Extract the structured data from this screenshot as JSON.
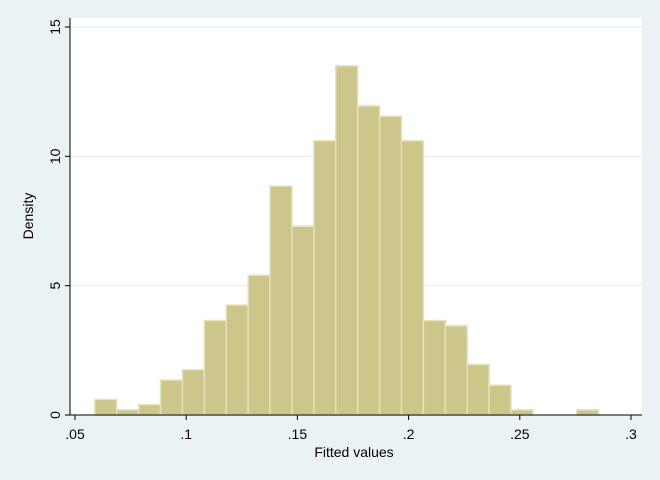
{
  "chart_data": {
    "type": "bar",
    "subtype": "histogram",
    "title": "",
    "xlabel": "Fitted values",
    "ylabel": "Density",
    "xlim": [
      0.05,
      0.3
    ],
    "ylim": [
      0,
      15
    ],
    "x_ticks": [
      {
        "value": 0.05,
        "label": ".05"
      },
      {
        "value": 0.1,
        "label": ".1"
      },
      {
        "value": 0.15,
        "label": ".15"
      },
      {
        "value": 0.2,
        "label": ".2"
      },
      {
        "value": 0.25,
        "label": ".25"
      },
      {
        "value": 0.3,
        "label": ".3"
      }
    ],
    "y_ticks": [
      {
        "value": 0,
        "label": "0"
      },
      {
        "value": 5,
        "label": "5"
      },
      {
        "value": 10,
        "label": "10"
      },
      {
        "value": 15,
        "label": "15"
      }
    ],
    "grid": true,
    "legend": "none",
    "bin_start": 0.0589,
    "bin_width": 0.00985,
    "values": [
      0.6,
      0.2,
      0.4,
      1.35,
      1.75,
      3.65,
      4.25,
      5.4,
      8.85,
      7.3,
      10.6,
      13.5,
      11.95,
      11.55,
      10.6,
      3.65,
      3.45,
      1.95,
      1.15,
      0.2,
      0,
      0,
      0.2
    ],
    "colors": {
      "bar_fill": "#cdc68a",
      "bar_edge": "#e6e2ba",
      "plot_background": "#ffffff",
      "outer_background": "#eaf2f3",
      "grid": "#e6eef0"
    }
  }
}
